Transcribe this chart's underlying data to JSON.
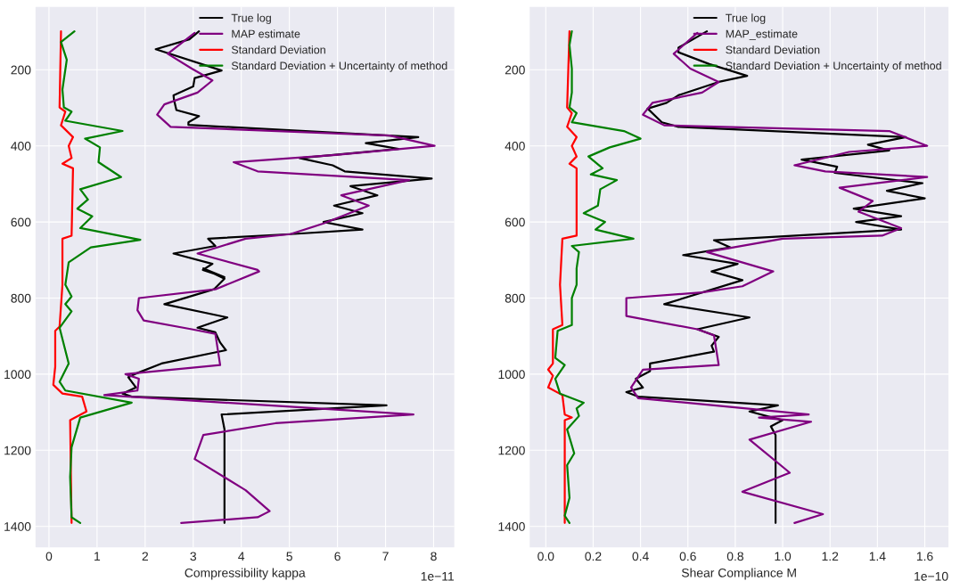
{
  "chart_data": [
    {
      "type": "line",
      "xlabel": "Compressibility kappa",
      "annotations": [
        "1e−11"
      ],
      "xlim": [
        -0.28,
        8.43
      ],
      "xticks": [
        0,
        1,
        2,
        3,
        4,
        5,
        6,
        7,
        8
      ],
      "ylim": [
        1455,
        35
      ],
      "yticks": [
        200,
        400,
        600,
        800,
        1000,
        1200,
        1400
      ],
      "grid": true,
      "legend": "top right",
      "series": [
        {
          "name": "True log",
          "color": "#000000",
          "x": [
            3.12,
            2.92,
            2.22,
            3.59,
            3.03,
            3.0,
            2.59,
            2.6,
            2.65,
            3.12,
            2.9,
            2.9,
            7.68,
            6.59,
            7.27,
            5.21,
            5.9,
            6.15,
            7.96,
            6.27,
            6.83,
            5.93,
            6.52,
            5.71,
            6.52,
            5.02,
            3.31,
            3.46,
            2.59,
            3.4,
            3.2,
            3.65,
            3.21,
            3.65,
            3.43,
            2.4,
            3.71,
            3.09,
            3.46,
            3.56,
            3.68,
            2.34,
            1.78,
            1.65,
            1.81,
            1.53,
            1.72,
            7.02,
            3.59,
            3.65,
            3.65
          ],
          "values": [
            99,
            120,
            146,
            202,
            222,
            244,
            267,
            279,
            306,
            322,
            338,
            345,
            377,
            393,
            408,
            432,
            451,
            467,
            486,
            506,
            530,
            557,
            577,
            600,
            620,
            632,
            644,
            663,
            683,
            710,
            726,
            745,
            722,
            749,
            777,
            816,
            851,
            878,
            890,
            917,
            937,
            972,
            1000,
            1008,
            1035,
            1051,
            1059,
            1082,
            1106,
            1145,
            1391
          ]
        },
        {
          "name": "MAP estimate",
          "color": "#800080",
          "x": [
            3.03,
            2.47,
            2.97,
            3.4,
            3.09,
            2.4,
            2.25,
            2.53,
            7.09,
            8.02,
            5.96,
            3.84,
            4.34,
            7.49,
            6.08,
            6.65,
            5.71,
            5.02,
            4.09,
            3.09,
            4.34,
            4.37,
            3.46,
            1.87,
            1.84,
            1.97,
            2.97,
            3.46,
            3.56,
            1.59,
            1.87,
            1.84,
            1.15,
            7.58,
            4.71,
            3.21,
            3.03,
            4.09,
            4.59,
            4.34,
            2.75
          ],
          "values": [
            103,
            158,
            197,
            228,
            260,
            291,
            318,
            350,
            373,
            400,
            424,
            443,
            467,
            490,
            530,
            557,
            604,
            632,
            644,
            683,
            726,
            730,
            777,
            800,
            832,
            859,
            882,
            894,
            976,
            1000,
            1012,
            1043,
            1055,
            1106,
            1129,
            1160,
            1223,
            1305,
            1360,
            1376,
            1391
          ]
        },
        {
          "name": "Standard Deviation",
          "color": "#ff0000",
          "x": [
            0.25,
            0.22,
            0.34,
            0.25,
            0.5,
            0.41,
            0.47,
            0.28,
            0.5,
            0.47,
            0.28,
            0.28,
            0.22,
            0.13,
            0.13,
            0.09,
            0.28,
            0.69,
            0.78,
            0.44,
            0.47
          ],
          "values": [
            99,
            299,
            310,
            346,
            377,
            400,
            432,
            447,
            459,
            636,
            644,
            765,
            875,
            886,
            980,
            1028,
            1051,
            1059,
            1098,
            1121,
            1391
          ]
        },
        {
          "name": "Standard Deviation + Uncertainty of method",
          "color": "#008000",
          "x": [
            0.53,
            0.25,
            0.37,
            0.28,
            0.31,
            0.47,
            0.34,
            1.53,
            0.75,
            1.06,
            1.03,
            1.5,
            0.65,
            0.81,
            0.59,
            0.9,
            0.65,
            1.9,
            0.87,
            0.41,
            0.34,
            0.47,
            0.34,
            0.47,
            0.22,
            0.41,
            0.22,
            0.34,
            1.72,
            0.65,
            0.47,
            0.44,
            0.47,
            0.65
          ],
          "values": [
            99,
            127,
            174,
            252,
            299,
            310,
            334,
            361,
            381,
            404,
            443,
            482,
            514,
            541,
            565,
            585,
            616,
            647,
            667,
            706,
            765,
            796,
            816,
            835,
            878,
            972,
            1020,
            1043,
            1075,
            1114,
            1192,
            1270,
            1376,
            1391
          ]
        }
      ]
    },
    {
      "type": "line",
      "xlabel": "Shear Compliance M",
      "annotations": [
        "1e−10"
      ],
      "xlim": [
        -0.068,
        1.7
      ],
      "xticks": [
        {
          "value": 0,
          "label": "0.0"
        },
        {
          "value": 0.2,
          "label": "0.2"
        },
        {
          "value": 0.4,
          "label": "0.4"
        },
        {
          "value": 0.6,
          "label": "0.6"
        },
        {
          "value": 0.8,
          "label": "0.8"
        },
        {
          "value": 1.0,
          "label": "1.0"
        },
        {
          "value": 1.2,
          "label": "1.2"
        },
        {
          "value": 1.4,
          "label": "1.4"
        },
        {
          "value": 1.6,
          "label": "1.6"
        }
      ],
      "ylim": [
        1455,
        35
      ],
      "yticks": [
        200,
        400,
        600,
        800,
        1000,
        1200,
        1400
      ],
      "grid": true,
      "legend": "top right",
      "series": [
        {
          "name": "True log",
          "color": "#000000",
          "x": [
            0.68,
            0.56,
            0.56,
            0.69,
            0.85,
            0.73,
            0.56,
            0.51,
            0.43,
            0.49,
            0.56,
            1.52,
            1.36,
            1.45,
            1.08,
            1.23,
            1.22,
            1.59,
            1.44,
            1.6,
            1.3,
            1.5,
            1.31,
            1.5,
            0.71,
            0.78,
            0.58,
            0.81,
            0.7,
            0.83,
            0.5,
            0.86,
            0.64,
            0.73,
            0.7,
            0.71,
            0.44,
            0.44,
            0.38,
            0.41,
            0.34,
            0.39,
            0.98,
            0.86,
            1.0,
            0.95,
            0.97,
            0.97
          ],
          "values": [
            99,
            142,
            154,
            185,
            216,
            232,
            267,
            287,
            302,
            338,
            350,
            377,
            397,
            412,
            436,
            455,
            471,
            498,
            518,
            538,
            565,
            585,
            600,
            620,
            648,
            667,
            687,
            710,
            730,
            753,
            816,
            851,
            882,
            902,
            925,
            941,
            972,
            992,
            1012,
            1035,
            1047,
            1059,
            1082,
            1098,
            1121,
            1137,
            1160,
            1391
          ]
        },
        {
          "name": "MAP_estimate",
          "color": "#800080",
          "x": [
            0.64,
            0.54,
            0.61,
            0.73,
            0.66,
            0.45,
            0.41,
            0.5,
            1.45,
            1.61,
            1.28,
            1.05,
            1.18,
            1.61,
            1.24,
            1.38,
            1.32,
            1.5,
            1.42,
            1.0,
            0.68,
            0.96,
            0.83,
            0.66,
            0.34,
            0.34,
            0.64,
            0.71,
            0.73,
            0.41,
            0.36,
            0.39,
            1.11,
            0.9,
            1.12,
            0.86,
            1.03,
            0.83,
            1.17,
            1.05
          ],
          "values": [
            103,
            158,
            197,
            232,
            260,
            287,
            318,
            346,
            361,
            400,
            416,
            451,
            467,
            482,
            510,
            545,
            573,
            616,
            636,
            644,
            679,
            730,
            769,
            785,
            800,
            847,
            882,
            898,
            976,
            988,
            1035,
            1063,
            1106,
            1114,
            1125,
            1172,
            1259,
            1309,
            1368,
            1391
          ]
        },
        {
          "name": "Standard Deviation",
          "color": "#ff0000",
          "x": [
            0.1,
            0.09,
            0.11,
            0.09,
            0.13,
            0.11,
            0.13,
            0.1,
            0.13,
            0.13,
            0.07,
            0.06,
            0.07,
            0.03,
            0.03,
            0.01,
            0.03,
            0.01,
            0.07,
            0.08,
            0.11,
            0.08,
            0.08
          ],
          "values": [
            99,
            299,
            314,
            350,
            377,
            400,
            428,
            447,
            459,
            636,
            644,
            765,
            871,
            882,
            972,
            988,
            1004,
            1035,
            1055,
            1106,
            1114,
            1121,
            1391
          ]
        },
        {
          "name": "Standard Deviation + Uncertainty of method",
          "color": "#008000",
          "x": [
            0.11,
            0.1,
            0.11,
            0.11,
            0.1,
            0.13,
            0.11,
            0.33,
            0.4,
            0.27,
            0.18,
            0.24,
            0.19,
            0.3,
            0.23,
            0.22,
            0.16,
            0.25,
            0.21,
            0.37,
            0.11,
            0.14,
            0.13,
            0.13,
            0.11,
            0.11,
            0.05,
            0.04,
            0.08,
            0.04,
            0.06,
            0.16,
            0.13,
            0.14,
            0.09,
            0.12,
            0.09,
            0.1,
            0.08,
            0.1
          ],
          "values": [
            99,
            135,
            197,
            260,
            299,
            314,
            338,
            361,
            381,
            404,
            428,
            459,
            475,
            490,
            514,
            557,
            577,
            600,
            620,
            644,
            663,
            679,
            722,
            765,
            800,
            871,
            886,
            957,
            976,
            1012,
            1051,
            1075,
            1090,
            1110,
            1145,
            1208,
            1239,
            1325,
            1372,
            1391
          ]
        }
      ]
    }
  ]
}
